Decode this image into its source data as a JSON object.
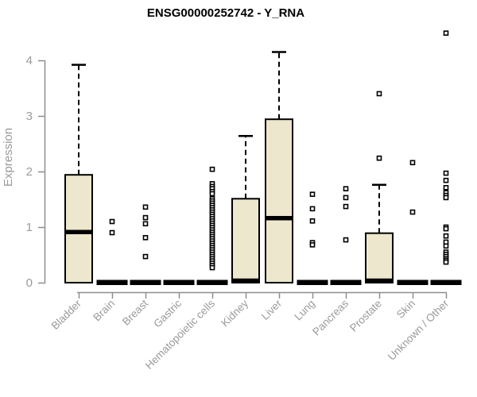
{
  "chart_data": {
    "type": "boxplot",
    "title": "ENSG00000252742 - Y_RNA",
    "xlabel": "",
    "ylabel": "Expression",
    "ylim": [
      0,
      4.5
    ],
    "yticks": [
      0,
      1,
      2,
      3,
      4
    ],
    "grid": false,
    "legend": false,
    "colors": {
      "box_fill": "#ece7cd",
      "box_border": "#000000",
      "axis": "#8e8e8e",
      "tick_label": "#9a9a9a",
      "title": "#000000",
      "outlier_fill": "#ffffff"
    },
    "categories": [
      "Bladder",
      "Brain",
      "Breast",
      "Gastric",
      "Hematopoietic cells",
      "Kidney",
      "Liver",
      "Lung",
      "Pancreas",
      "Prostate",
      "Skin",
      "Unknown / Other"
    ],
    "series": [
      {
        "name": "Bladder",
        "whisker_low": 0,
        "q1": 0,
        "median": 0.91,
        "q3": 1.94,
        "whisker_high": 3.92,
        "outliers": []
      },
      {
        "name": "Brain",
        "whisker_low": 0,
        "q1": 0,
        "median": 0,
        "q3": 0,
        "whisker_high": 0,
        "outliers": [
          1.1,
          0.9
        ]
      },
      {
        "name": "Breast",
        "whisker_low": 0,
        "q1": 0,
        "median": 0,
        "q3": 0,
        "whisker_high": 0,
        "outliers": [
          1.36,
          1.17,
          1.06,
          0.81,
          0.47
        ]
      },
      {
        "name": "Gastric",
        "whisker_low": 0,
        "q1": 0,
        "median": 0,
        "q3": 0,
        "whisker_high": 0,
        "outliers": []
      },
      {
        "name": "Hematopoietic cells",
        "whisker_low": 0,
        "q1": 0,
        "median": 0,
        "q3": 0,
        "whisker_high": 0,
        "outliers": [
          2.04,
          1.78,
          1.73,
          1.69,
          1.64,
          1.6,
          1.51,
          1.47,
          1.43,
          1.39,
          1.35,
          1.31,
          1.27,
          1.23,
          1.19,
          1.15,
          1.11,
          1.07,
          1.03,
          0.99,
          0.95,
          0.91,
          0.87,
          0.83,
          0.79,
          0.75,
          0.71,
          0.67,
          0.63,
          0.59,
          0.55,
          0.51,
          0.47,
          0.43,
          0.39,
          0.35,
          0.31,
          0.27
        ]
      },
      {
        "name": "Kidney",
        "whisker_low": 0,
        "q1": 0,
        "median": 0,
        "q3": 1.51,
        "whisker_high": 2.64,
        "outliers": []
      },
      {
        "name": "Liver",
        "whisker_low": 0,
        "q1": 0,
        "median": 1.16,
        "q3": 2.94,
        "whisker_high": 4.15,
        "outliers": []
      },
      {
        "name": "Lung",
        "whisker_low": 0,
        "q1": 0,
        "median": 0,
        "q3": 0,
        "whisker_high": 0,
        "outliers": [
          1.59,
          1.33,
          1.11,
          0.72,
          0.68
        ]
      },
      {
        "name": "Pancreas",
        "whisker_low": 0,
        "q1": 0,
        "median": 0,
        "q3": 0,
        "whisker_high": 0,
        "outliers": [
          1.69,
          1.53,
          1.37,
          0.77
        ]
      },
      {
        "name": "Prostate",
        "whisker_low": 0,
        "q1": 0,
        "median": 0,
        "q3": 0.89,
        "whisker_high": 1.76,
        "outliers": [
          3.4,
          2.24
        ]
      },
      {
        "name": "Skin",
        "whisker_low": 0,
        "q1": 0,
        "median": 0,
        "q3": 0,
        "whisker_high": 0,
        "outliers": [
          2.16,
          1.27
        ]
      },
      {
        "name": "Unknown / Other",
        "whisker_low": 0,
        "q1": 0,
        "median": 0,
        "q3": 0,
        "whisker_high": 0,
        "outliers": [
          4.49,
          1.97,
          1.84,
          1.71,
          1.62,
          1.57,
          1.53,
          1.0,
          0.97,
          0.84,
          0.73,
          0.66,
          0.55,
          0.51,
          0.47,
          0.43,
          0.4,
          0.37
        ]
      }
    ]
  }
}
